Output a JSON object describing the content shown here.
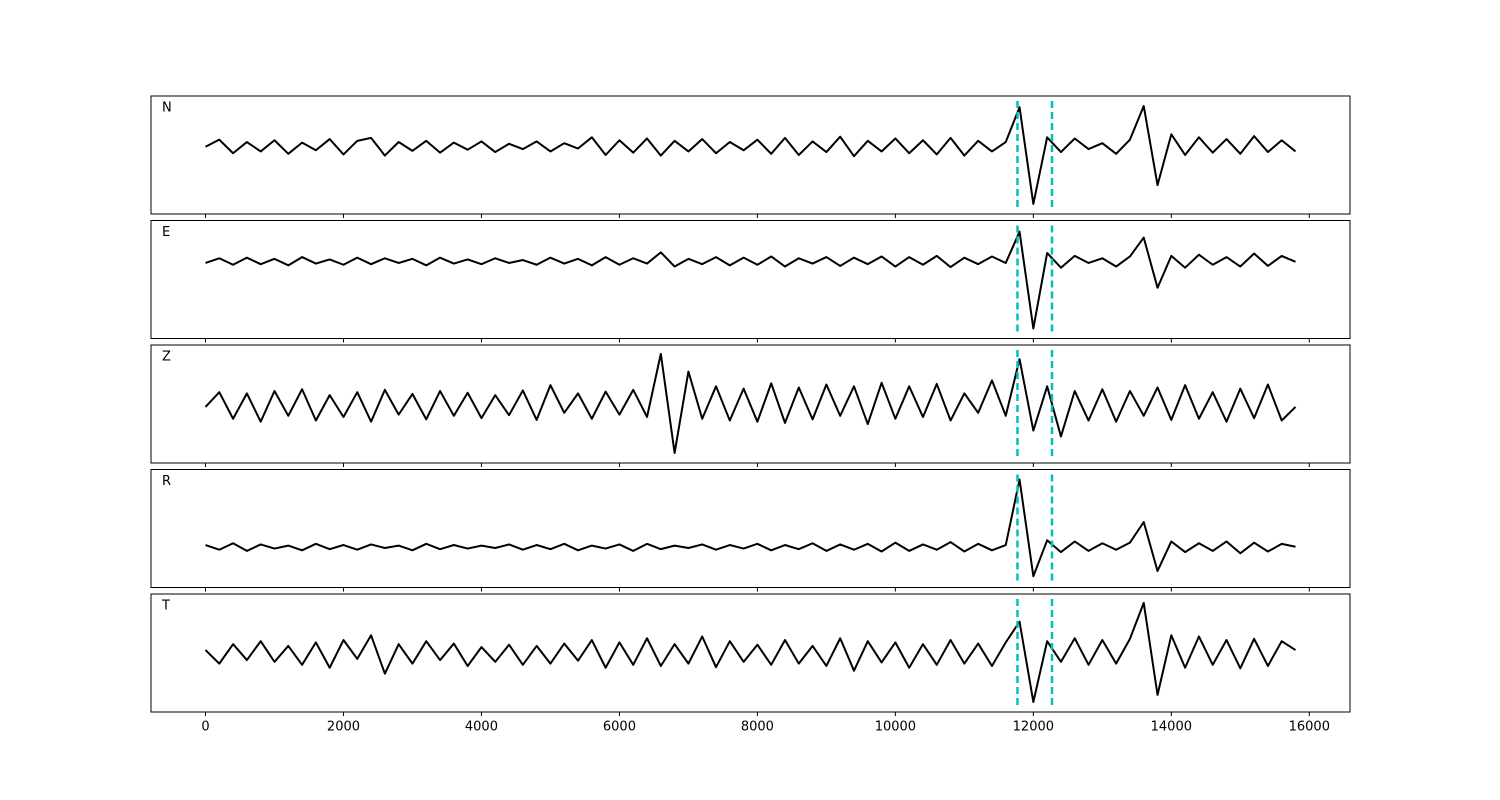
{
  "chart_data": {
    "type": "line",
    "subplots": true,
    "x": [
      0,
      200,
      400,
      600,
      800,
      1000,
      1200,
      1400,
      1600,
      1800,
      2000,
      2200,
      2400,
      2600,
      2800,
      3000,
      3200,
      3400,
      3600,
      3800,
      4000,
      4200,
      4400,
      4600,
      4800,
      5000,
      5200,
      5400,
      5600,
      5800,
      6000,
      6200,
      6400,
      6600,
      6800,
      7000,
      7200,
      7400,
      7600,
      7800,
      8000,
      8200,
      8400,
      8600,
      8800,
      9000,
      9200,
      9400,
      9600,
      9800,
      10000,
      10200,
      10400,
      10600,
      10800,
      11000,
      11200,
      11400,
      11600,
      11800,
      12000,
      12200,
      12400,
      12600,
      12800,
      13000,
      13200,
      13400,
      13600,
      13800,
      14000,
      14200,
      14400,
      14600,
      14800,
      15000,
      15200,
      15400,
      15600,
      15800
    ],
    "xlim": [
      -790,
      16590
    ],
    "xticks": [
      0,
      2000,
      4000,
      6000,
      8000,
      10000,
      12000,
      14000,
      16000
    ],
    "ylim": [
      -1,
      1
    ],
    "vlines": [
      {
        "x": 11770,
        "color": "#00bfbf"
      },
      {
        "x": 12270,
        "color": "#00bfbf"
      }
    ],
    "series": [
      {
        "name": "N",
        "color": "#000000",
        "values": [
          0.14,
          0.26,
          0.03,
          0.22,
          0.06,
          0.25,
          0.02,
          0.21,
          0.08,
          0.27,
          0.01,
          0.24,
          0.29,
          -0.01,
          0.22,
          0.07,
          0.24,
          0.04,
          0.21,
          0.09,
          0.23,
          0.05,
          0.19,
          0.1,
          0.23,
          0.06,
          0.2,
          0.11,
          0.3,
          0.0,
          0.25,
          0.04,
          0.28,
          -0.01,
          0.24,
          0.06,
          0.27,
          0.03,
          0.22,
          0.08,
          0.26,
          0.02,
          0.29,
          0.0,
          0.23,
          0.05,
          0.31,
          -0.02,
          0.24,
          0.06,
          0.28,
          0.03,
          0.25,
          0.01,
          0.29,
          -0.01,
          0.24,
          0.06,
          0.22,
          0.81,
          -0.83,
          0.3,
          0.05,
          0.28,
          0.1,
          0.2,
          0.02,
          0.26,
          0.83,
          -0.51,
          0.35,
          0.0,
          0.3,
          0.04,
          0.27,
          0.02,
          0.32,
          0.05,
          0.25,
          0.06
        ]
      },
      {
        "name": "E",
        "color": "#000000",
        "values": [
          0.28,
          0.36,
          0.25,
          0.37,
          0.26,
          0.35,
          0.24,
          0.38,
          0.27,
          0.34,
          0.25,
          0.37,
          0.26,
          0.36,
          0.28,
          0.35,
          0.24,
          0.37,
          0.27,
          0.34,
          0.26,
          0.36,
          0.28,
          0.33,
          0.25,
          0.37,
          0.27,
          0.35,
          0.24,
          0.38,
          0.25,
          0.36,
          0.27,
          0.46,
          0.22,
          0.35,
          0.26,
          0.38,
          0.24,
          0.37,
          0.25,
          0.39,
          0.22,
          0.36,
          0.27,
          0.38,
          0.23,
          0.37,
          0.26,
          0.39,
          0.22,
          0.38,
          0.25,
          0.4,
          0.21,
          0.37,
          0.26,
          0.39,
          0.28,
          0.81,
          -0.83,
          0.45,
          0.2,
          0.4,
          0.28,
          0.36,
          0.22,
          0.39,
          0.71,
          -0.14,
          0.4,
          0.2,
          0.42,
          0.25,
          0.38,
          0.22,
          0.44,
          0.23,
          0.4,
          0.3
        ]
      },
      {
        "name": "Z",
        "color": "#000000",
        "values": [
          -0.05,
          0.2,
          -0.25,
          0.18,
          -0.3,
          0.22,
          -0.2,
          0.25,
          -0.28,
          0.15,
          -0.22,
          0.2,
          -0.3,
          0.24,
          -0.18,
          0.17,
          -0.26,
          0.22,
          -0.2,
          0.19,
          -0.24,
          0.15,
          -0.19,
          0.23,
          -0.27,
          0.32,
          -0.15,
          0.18,
          -0.25,
          0.21,
          -0.18,
          0.24,
          -0.22,
          0.85,
          -0.83,
          0.55,
          -0.25,
          0.3,
          -0.28,
          0.26,
          -0.3,
          0.35,
          -0.32,
          0.28,
          -0.26,
          0.33,
          -0.2,
          0.3,
          -0.34,
          0.36,
          -0.25,
          0.3,
          -0.22,
          0.34,
          -0.28,
          0.18,
          -0.15,
          0.4,
          -0.2,
          0.76,
          -0.45,
          0.3,
          -0.55,
          0.22,
          -0.28,
          0.25,
          -0.3,
          0.22,
          -0.2,
          0.28,
          -0.27,
          0.32,
          -0.25,
          0.2,
          -0.3,
          0.26,
          -0.24,
          0.33,
          -0.28,
          -0.05
        ]
      },
      {
        "name": "R",
        "color": "#000000",
        "values": [
          -0.28,
          -0.36,
          -0.25,
          -0.38,
          -0.27,
          -0.34,
          -0.29,
          -0.37,
          -0.26,
          -0.35,
          -0.28,
          -0.36,
          -0.27,
          -0.33,
          -0.29,
          -0.37,
          -0.26,
          -0.35,
          -0.28,
          -0.34,
          -0.29,
          -0.33,
          -0.27,
          -0.36,
          -0.28,
          -0.35,
          -0.26,
          -0.37,
          -0.29,
          -0.34,
          -0.27,
          -0.38,
          -0.26,
          -0.35,
          -0.29,
          -0.33,
          -0.27,
          -0.36,
          -0.28,
          -0.34,
          -0.26,
          -0.37,
          -0.28,
          -0.35,
          -0.25,
          -0.38,
          -0.27,
          -0.36,
          -0.26,
          -0.39,
          -0.24,
          -0.38,
          -0.27,
          -0.36,
          -0.23,
          -0.39,
          -0.26,
          -0.37,
          -0.28,
          0.83,
          -0.81,
          -0.2,
          -0.4,
          -0.22,
          -0.38,
          -0.25,
          -0.36,
          -0.24,
          0.11,
          -0.72,
          -0.22,
          -0.4,
          -0.25,
          -0.38,
          -0.22,
          -0.42,
          -0.24,
          -0.39,
          -0.26,
          -0.31
        ]
      },
      {
        "name": "T",
        "color": "#000000",
        "values": [
          0.05,
          -0.18,
          0.15,
          -0.12,
          0.2,
          -0.15,
          0.12,
          -0.2,
          0.18,
          -0.25,
          0.22,
          -0.1,
          0.3,
          -0.35,
          0.15,
          -0.18,
          0.2,
          -0.12,
          0.16,
          -0.22,
          0.1,
          -0.15,
          0.14,
          -0.2,
          0.12,
          -0.18,
          0.16,
          -0.13,
          0.22,
          -0.25,
          0.18,
          -0.2,
          0.25,
          -0.22,
          0.15,
          -0.18,
          0.28,
          -0.24,
          0.2,
          -0.15,
          0.14,
          -0.2,
          0.22,
          -0.18,
          0.12,
          -0.22,
          0.25,
          -0.3,
          0.2,
          -0.16,
          0.18,
          -0.25,
          0.15,
          -0.2,
          0.22,
          -0.18,
          0.16,
          -0.22,
          0.18,
          0.53,
          -0.83,
          0.2,
          -0.15,
          0.25,
          -0.2,
          0.22,
          -0.18,
          0.24,
          0.85,
          -0.71,
          0.3,
          -0.25,
          0.28,
          -0.2,
          0.22,
          -0.26,
          0.24,
          -0.22,
          0.2,
          0.05
        ]
      }
    ]
  }
}
